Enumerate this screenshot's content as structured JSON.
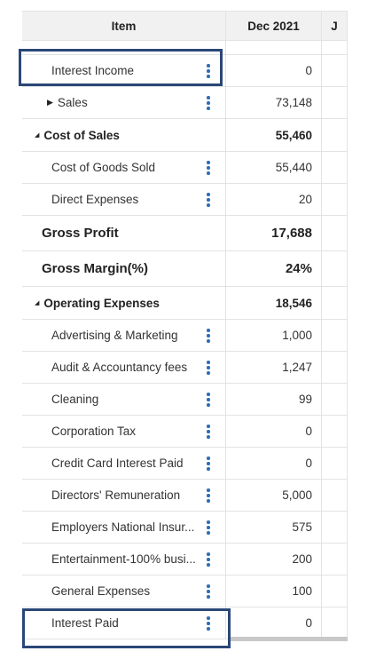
{
  "header": {
    "columns": [
      "Item",
      "Dec 2021",
      "J"
    ]
  },
  "rows": [
    {
      "label": "Interest Income",
      "value": "0",
      "kind": "item"
    },
    {
      "label": "Sales",
      "value": "73,148",
      "kind": "sub-group"
    },
    {
      "label": "Cost of Sales",
      "value": "55,460",
      "kind": "group"
    },
    {
      "label": "Cost of Goods Sold",
      "value": "55,440",
      "kind": "item"
    },
    {
      "label": "Direct Expenses",
      "value": "20",
      "kind": "item"
    },
    {
      "label": "Gross Profit",
      "value": "17,688",
      "kind": "total"
    },
    {
      "label": "Gross Margin(%)",
      "value": "24%",
      "kind": "total"
    },
    {
      "label": "Operating Expenses",
      "value": "18,546",
      "kind": "group"
    },
    {
      "label": "Advertising & Marketing",
      "value": "1,000",
      "kind": "item"
    },
    {
      "label": "Audit & Accountancy fees",
      "value": "1,247",
      "kind": "item"
    },
    {
      "label": "Cleaning",
      "value": "99",
      "kind": "item"
    },
    {
      "label": "Corporation Tax",
      "value": "0",
      "kind": "item"
    },
    {
      "label": "Credit Card Interest Paid",
      "value": "0",
      "kind": "item"
    },
    {
      "label": "Directors' Remuneration",
      "value": "5,000",
      "kind": "item"
    },
    {
      "label": "Employers National Insur...",
      "value": "575",
      "kind": "item"
    },
    {
      "label": "Entertainment-100% busi...",
      "value": "200",
      "kind": "item"
    },
    {
      "label": "General Expenses",
      "value": "100",
      "kind": "item"
    },
    {
      "label": "Interest Paid",
      "value": "0",
      "kind": "item"
    }
  ]
}
